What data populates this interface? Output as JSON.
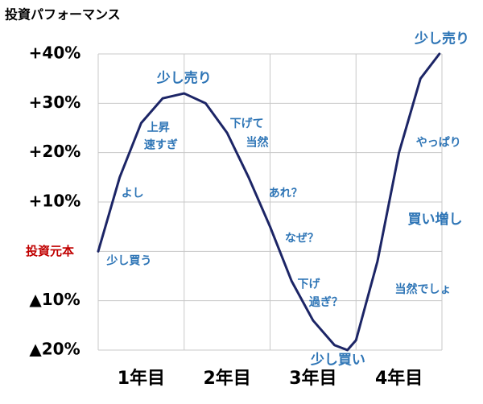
{
  "chart_data": {
    "type": "line",
    "title": "投資パフォーマンス",
    "x": [
      0,
      0.25,
      0.5,
      0.75,
      1.0,
      1.25,
      1.5,
      1.75,
      2.0,
      2.25,
      2.5,
      2.75,
      2.9,
      3.0,
      3.25,
      3.5,
      3.75,
      3.97
    ],
    "series": [
      {
        "color": "#1c2566",
        "values": [
          0,
          15,
          26,
          31,
          32,
          30,
          24,
          15,
          5,
          -6,
          -14,
          -19,
          -20,
          -18,
          -2,
          20,
          35,
          40
        ]
      }
    ],
    "xlim": [
      0,
      4
    ],
    "xticks": [
      {
        "value": 0.5,
        "label": "1年目"
      },
      {
        "value": 1.5,
        "label": "2年目"
      },
      {
        "value": 2.5,
        "label": "3年目"
      },
      {
        "value": 3.5,
        "label": "4年目"
      }
    ],
    "xgrid": [
      0,
      1,
      2,
      3,
      4
    ],
    "ylim": [
      -20,
      40
    ],
    "yticks": [
      {
        "value": 40,
        "label": "+40%"
      },
      {
        "value": 30,
        "label": "+30%"
      },
      {
        "value": 20,
        "label": "+20%"
      },
      {
        "value": 10,
        "label": "+10%"
      },
      {
        "value": 0,
        "label": "投資元本",
        "color": "#c00000"
      },
      {
        "value": -10,
        "label": "▲10%"
      },
      {
        "value": -20,
        "label": "▲20%"
      }
    ],
    "grid": true,
    "annotation_color": "#2e75b6",
    "annotations": [
      {
        "text": "少し売り",
        "x": 1.0,
        "y": 35,
        "bold": true
      },
      {
        "text": "上昇",
        "x": 0.7,
        "y": 25
      },
      {
        "text": "速すぎ",
        "x": 0.73,
        "y": 21.5
      },
      {
        "text": "よし",
        "x": 0.4,
        "y": 11.7
      },
      {
        "text": "少し買う",
        "x": 0.36,
        "y": -2
      },
      {
        "text": "下げて",
        "x": 1.73,
        "y": 25.8
      },
      {
        "text": "当然",
        "x": 1.85,
        "y": 22
      },
      {
        "text": "あれ？",
        "x": 2.18,
        "y": 11.7
      },
      {
        "text": "なぜ？",
        "x": 2.37,
        "y": 2.6
      },
      {
        "text": "下げ",
        "x": 2.45,
        "y": -6.7
      },
      {
        "text": "過ぎ？",
        "x": 2.65,
        "y": -10.4
      },
      {
        "text": "少し買い",
        "x": 2.79,
        "y": -22,
        "bold": true
      },
      {
        "text": "当然でしょ",
        "x": 3.78,
        "y": -7.8
      },
      {
        "text": "買い増し",
        "x": 3.92,
        "y": 6.4,
        "bold": true
      },
      {
        "text": "やっぱり",
        "x": 3.96,
        "y": 22
      },
      {
        "text": "少し売り",
        "x": 4.0,
        "y": 43,
        "bold": true
      }
    ]
  }
}
